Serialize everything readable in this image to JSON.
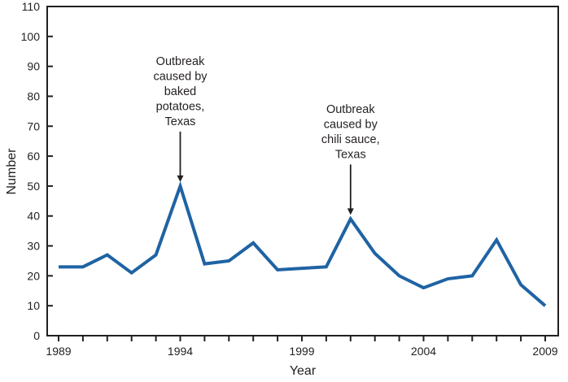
{
  "chart_data": {
    "type": "line",
    "xlabel": "Year",
    "ylabel": "Number",
    "xlim": [
      1989,
      2009
    ],
    "ylim": [
      0,
      110
    ],
    "y_ticks": [
      0,
      10,
      20,
      30,
      40,
      50,
      60,
      70,
      80,
      90,
      100,
      110
    ],
    "x_tick_labels": [
      "1989",
      "1994",
      "1999",
      "2004",
      "2009"
    ],
    "grid": false,
    "series_color": "#1f63a3",
    "x": [
      1989,
      1990,
      1991,
      1992,
      1993,
      1994,
      1995,
      1996,
      1997,
      1998,
      1999,
      2000,
      2001,
      2002,
      2003,
      2004,
      2005,
      2006,
      2007,
      2008,
      2009
    ],
    "values": [
      23,
      23,
      27,
      21,
      27,
      50,
      24,
      25,
      31,
      22,
      22.5,
      23,
      39,
      27.5,
      20,
      16,
      19,
      20,
      32,
      17,
      10
    ],
    "annotations": [
      {
        "x": 1994,
        "y": 50,
        "lines": [
          "Outbreak",
          "caused by",
          "baked",
          "potatoes,",
          "Texas"
        ]
      },
      {
        "x": 2001,
        "y": 39,
        "lines": [
          "Outbreak",
          "caused by",
          "chili sauce,",
          "Texas"
        ]
      }
    ]
  }
}
